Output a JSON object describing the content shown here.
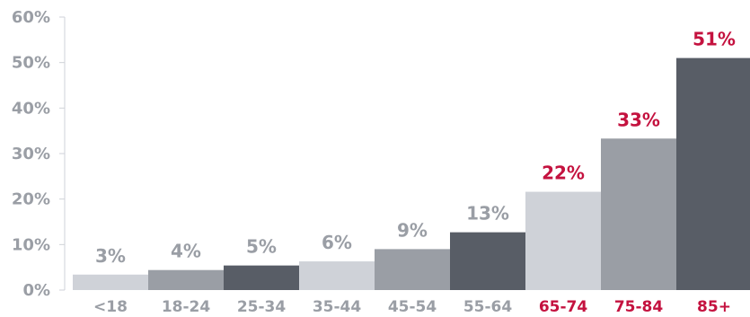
{
  "chart_data": {
    "type": "bar",
    "title": "",
    "xlabel": "",
    "ylabel": "",
    "ylim": [
      0,
      60
    ],
    "yticks": [
      0,
      10,
      20,
      30,
      40,
      50,
      60
    ],
    "ytick_labels": [
      "0%",
      "10%",
      "20%",
      "30%",
      "40%",
      "50%",
      "60%"
    ],
    "grid": false,
    "legend": "none",
    "categories": [
      "<18",
      "18-24",
      "25-34",
      "35-44",
      "45-54",
      "55-64",
      "65-74",
      "75-84",
      "85+"
    ],
    "values": [
      3.4,
      4.4,
      5.4,
      6.3,
      9.0,
      12.7,
      21.6,
      33.3,
      51.0
    ],
    "value_labels": [
      "3%",
      "4%",
      "5%",
      "6%",
      "9%",
      "13%",
      "22%",
      "33%",
      "51%"
    ],
    "bar_colors": [
      "#cfd2d8",
      "#9a9ea5",
      "#585d66",
      "#cfd2d8",
      "#9a9ea5",
      "#585d66",
      "#cfd2d8",
      "#9a9ea5",
      "#585d66"
    ],
    "highlight_categories": [
      "65-74",
      "75-84",
      "85+"
    ],
    "colors": {
      "highlight_text": "#c4123f",
      "normal_text": "#9a9ea5",
      "axis": "#cfd2d8"
    }
  }
}
